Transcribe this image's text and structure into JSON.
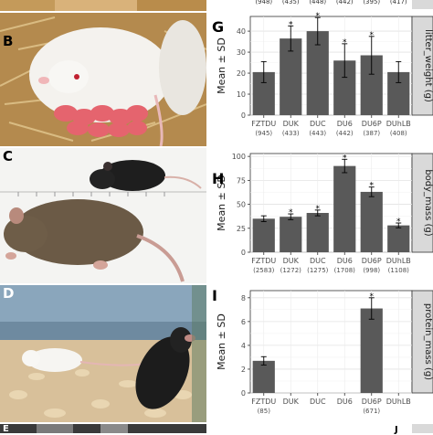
{
  "panels": {
    "B": {
      "letter": "B"
    },
    "C": {
      "letter": "C"
    },
    "D": {
      "letter": "D"
    },
    "E": {
      "letter": "E"
    }
  },
  "top_strip": {
    "counts": [
      "(948)",
      "(435)",
      "(448)",
      "(442)",
      "(395)",
      "(417)"
    ]
  },
  "chart_data": [
    {
      "panel": "G",
      "type": "bar",
      "ylabel": "Mean ± SD",
      "facet_label": "litter_weight (g)",
      "categories": [
        "FZTDU",
        "DUK",
        "DUC",
        "DU6",
        "DU6P",
        "DUhLB"
      ],
      "counts": [
        "(945)",
        "(433)",
        "(443)",
        "(442)",
        "(387)",
        "(408)"
      ],
      "values": [
        20.5,
        36.5,
        40,
        26,
        28.5,
        20.5
      ],
      "sd": [
        5,
        6,
        6.5,
        8,
        9,
        5
      ],
      "significant": [
        false,
        true,
        true,
        true,
        true,
        false
      ],
      "ylim": [
        0,
        47
      ],
      "yticks": [
        0,
        10,
        20,
        30,
        40
      ],
      "bar_color": "#595959",
      "grid": true
    },
    {
      "panel": "H",
      "type": "bar",
      "ylabel": "Mean ± SD",
      "facet_label": "body_mass (g)",
      "categories": [
        "FZTDU",
        "DUK",
        "DUC",
        "DU6",
        "DU6P",
        "DUhLB"
      ],
      "counts": [
        "(2583)",
        "(1272)",
        "(1275)",
        "(1708)",
        "(998)",
        "(1108)"
      ],
      "values": [
        35,
        37,
        41,
        90,
        63,
        28
      ],
      "sd": [
        3,
        3,
        3,
        7,
        5,
        2.5
      ],
      "significant": [
        false,
        true,
        true,
        true,
        true,
        true
      ],
      "ylim": [
        0,
        103
      ],
      "yticks": [
        0,
        25,
        50,
        75,
        100
      ],
      "bar_color": "#595959",
      "grid": true
    },
    {
      "panel": "I",
      "type": "bar",
      "ylabel": "Mean ± SD",
      "facet_label": "protein_mass (g)",
      "categories": [
        "FZTDU",
        "DUK",
        "DUC",
        "DU6",
        "DU6P",
        "DUhLB"
      ],
      "counts": [
        "(85)",
        "",
        "",
        "",
        "(671)",
        ""
      ],
      "values": [
        2.7,
        null,
        null,
        null,
        7.1,
        null
      ],
      "sd": [
        0.35,
        null,
        null,
        null,
        0.9,
        null
      ],
      "significant": [
        false,
        false,
        false,
        false,
        true,
        false
      ],
      "ylim": [
        0,
        8.6
      ],
      "yticks": [
        0,
        2,
        4,
        6,
        8
      ],
      "bar_color": "#595959",
      "grid": true
    }
  ],
  "bottom_stub": {
    "letter": "J"
  }
}
